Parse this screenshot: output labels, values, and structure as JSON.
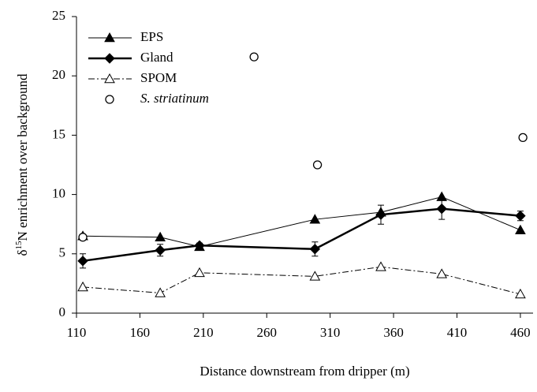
{
  "chart_data": {
    "type": "line",
    "x_label": "Distance downstream from dripper (m)",
    "y_label": [
      "δ",
      "15",
      "N enrichment over background"
    ],
    "xlim": [
      110,
      470
    ],
    "xticks": [
      110,
      160,
      210,
      260,
      310,
      360,
      410,
      460
    ],
    "ylim": [
      0,
      25
    ],
    "yticks": [
      0,
      5,
      10,
      15,
      20,
      25
    ],
    "legend": "upper left",
    "series": [
      {
        "name": "EPS",
        "color": "#000000",
        "marker": "filled-triangle",
        "line": "solid",
        "line_width": 1,
        "x": [
          115,
          176,
          207,
          298,
          350,
          398,
          460
        ],
        "values": [
          6.5,
          6.4,
          5.6,
          7.9,
          8.5,
          9.8,
          7.0
        ]
      },
      {
        "name": "Gland",
        "color": "#000000",
        "marker": "filled-diamond",
        "line": "solid",
        "line_width": 2.5,
        "x": [
          115,
          176,
          207,
          298,
          350,
          398,
          460
        ],
        "values": [
          4.4,
          5.3,
          5.7,
          5.4,
          8.3,
          8.8,
          8.2
        ],
        "errors": [
          0.6,
          0.5,
          0.2,
          0.6,
          0.8,
          0.9,
          0.4
        ]
      },
      {
        "name": "SPOM",
        "color": "#000000",
        "marker": "open-triangle",
        "line": "dashdot",
        "line_width": 1,
        "x": [
          115,
          176,
          207,
          298,
          350,
          398,
          460
        ],
        "values": [
          2.2,
          1.7,
          3.4,
          3.1,
          3.9,
          3.3,
          1.6
        ]
      },
      {
        "name": "S. striatinum",
        "color": "#000000",
        "marker": "open-circle",
        "line": null,
        "italic": true,
        "x": [
          115,
          250,
          300,
          462
        ],
        "values": [
          6.4,
          21.6,
          12.5,
          14.8
        ]
      }
    ]
  }
}
